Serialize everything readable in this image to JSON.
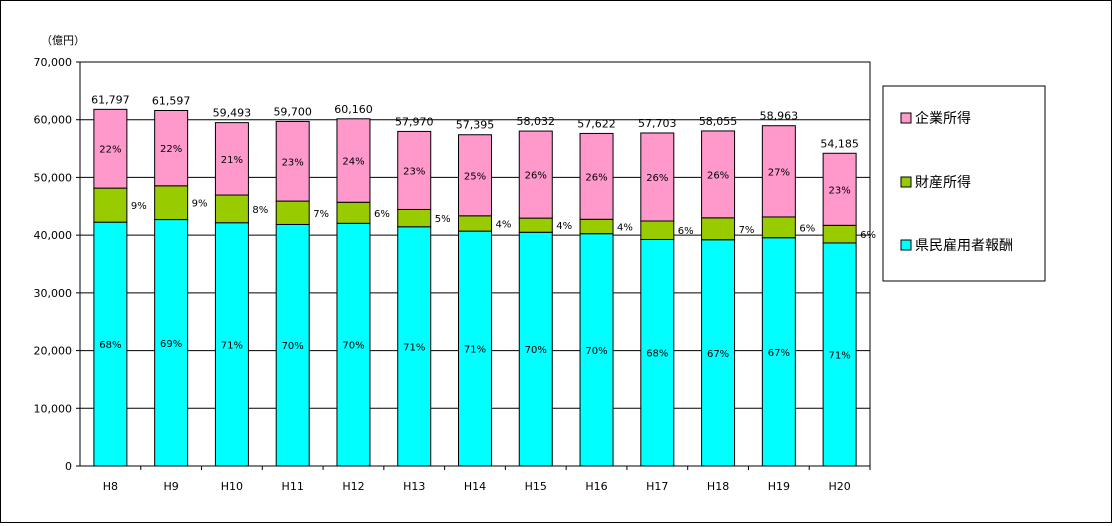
{
  "chart_data": {
    "type": "bar",
    "stacked": true,
    "unit_label": "（億円）",
    "categories": [
      "H8",
      "H9",
      "H10",
      "H11",
      "H12",
      "H13",
      "H14",
      "H15",
      "H16",
      "H17",
      "H18",
      "H19",
      "H20"
    ],
    "totals": [
      61797,
      61597,
      59493,
      59700,
      60160,
      57970,
      57395,
      58032,
      57622,
      57703,
      58055,
      58963,
      54185
    ],
    "total_labels": [
      "61,797",
      "61,597",
      "59,493",
      "59,700",
      "60,160",
      "57,970",
      "57,395",
      "58,032",
      "57,622",
      "57,703",
      "58,055",
      "58,963",
      "54,185"
    ],
    "series": [
      {
        "name": "県民雇用者報酬",
        "color": "#00ffff",
        "values": [
          42250,
          42700,
          42150,
          41850,
          42050,
          41450,
          40700,
          40500,
          40250,
          39250,
          39200,
          39550,
          38650
        ],
        "pct_labels": [
          "68%",
          "69%",
          "71%",
          "70%",
          "70%",
          "71%",
          "71%",
          "70%",
          "70%",
          "68%",
          "67%",
          "67%",
          "71%"
        ]
      },
      {
        "name": "財産所得",
        "color": "#99cc00",
        "values": [
          5900,
          5850,
          4800,
          4050,
          3650,
          3000,
          2650,
          2450,
          2500,
          3200,
          3800,
          3600,
          3050
        ],
        "pct_labels": [
          "9%",
          "9%",
          "8%",
          "7%",
          "6%",
          "5%",
          "4%",
          "4%",
          "4%",
          "6%",
          "7%",
          "6%",
          "6%"
        ]
      },
      {
        "name": "企業所得",
        "color": "#ff99cc",
        "values": [
          13647,
          13047,
          12543,
          13800,
          14460,
          13520,
          14045,
          15082,
          14872,
          15253,
          15055,
          15813,
          12485
        ],
        "pct_labels": [
          "22%",
          "22%",
          "21%",
          "23%",
          "24%",
          "23%",
          "25%",
          "26%",
          "26%",
          "26%",
          "26%",
          "27%",
          "23%"
        ]
      }
    ],
    "y_ticks": [
      "0",
      "10,000",
      "20,000",
      "30,000",
      "40,000",
      "50,000",
      "60,000",
      "70,000"
    ],
    "ylim": [
      0,
      70000
    ],
    "grid": true,
    "legend_position": "right",
    "legend_order": [
      "企業所得",
      "財産所得",
      "県民雇用者報酬"
    ]
  }
}
